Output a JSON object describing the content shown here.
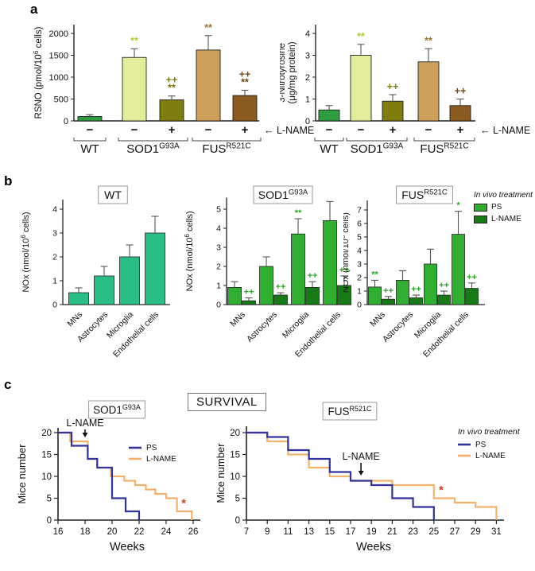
{
  "panels": {
    "a": {
      "letter": "a"
    },
    "b": {
      "letter": "b",
      "legend": {
        "title": "In vivo treatment",
        "items": [
          {
            "label": "PS",
            "color": "#2fae2f"
          },
          {
            "label": "L-NAME",
            "color": "#177a17"
          }
        ]
      }
    },
    "c": {
      "letter": "c",
      "survival_title": "SURVIVAL"
    }
  },
  "chart_data": [
    {
      "id": "rsno",
      "panel": "a",
      "type": "bar",
      "ylabel_lines": [
        {
          "pre": "RSNO (pmol/10",
          "sup": "6",
          "post": " cells)"
        }
      ],
      "ylim": [
        0,
        2200
      ],
      "yticks": [
        0,
        500,
        1000,
        1500,
        2000
      ],
      "treatment_label": "← L-NAME",
      "bars": [
        {
          "group": "WT",
          "treatment": "−",
          "value": 100,
          "err": 40,
          "color": "#2f9e41",
          "sig": [],
          "sig_color": "#2f9e41"
        },
        {
          "group": "SOD1 G93A",
          "treatment": "−",
          "value": 1450,
          "err": 200,
          "color": "#e3ee9a",
          "sig": [
            "**"
          ],
          "sig_color": "#b7c832"
        },
        {
          "group": "SOD1 G93A",
          "treatment": "+",
          "value": 480,
          "err": 90,
          "color": "#7f7d0e",
          "sig": [
            "++",
            "**"
          ],
          "sig_color": "#7f7d0e"
        },
        {
          "group": "FUS R521C",
          "treatment": "−",
          "value": 1620,
          "err": 330,
          "color": "#cd9f58",
          "sig": [
            "**"
          ],
          "sig_color": "#97742f"
        },
        {
          "group": "FUS R521C",
          "treatment": "+",
          "value": 580,
          "err": 120,
          "color": "#8a5a20",
          "sig": [
            "++",
            "**"
          ],
          "sig_color": "#6e4a16"
        }
      ],
      "groups": [
        {
          "base": "WT",
          "sup": "",
          "first": 0,
          "last": 0
        },
        {
          "base": "SOD1",
          "sup": "G93A",
          "first": 1,
          "last": 2
        },
        {
          "base": "FUS",
          "sup": "R521C",
          "first": 3,
          "last": 4
        }
      ]
    },
    {
      "id": "nitro",
      "panel": "a",
      "type": "bar",
      "ylabel_lines": [
        {
          "pre": "3-Nitrotyrosine"
        },
        {
          "pre": "(μg/mg protein)"
        }
      ],
      "ylim": [
        0,
        4.4
      ],
      "yticks": [
        0,
        1,
        2,
        3,
        4
      ],
      "treatment_label": "← L-NAME",
      "bars": [
        {
          "group": "WT",
          "treatment": "−",
          "value": 0.5,
          "err": 0.2,
          "color": "#2f9e41",
          "sig": [],
          "sig_color": "#2f9e41"
        },
        {
          "group": "SOD1 G93A",
          "treatment": "−",
          "value": 3.0,
          "err": 0.5,
          "color": "#e3ee9a",
          "sig": [
            "**"
          ],
          "sig_color": "#b7c832"
        },
        {
          "group": "SOD1 G93A",
          "treatment": "+",
          "value": 0.9,
          "err": 0.3,
          "color": "#7f7d0e",
          "sig": [
            "++"
          ],
          "sig_color": "#7f7d0e"
        },
        {
          "group": "FUS R521C",
          "treatment": "−",
          "value": 2.7,
          "err": 0.6,
          "color": "#cd9f58",
          "sig": [
            "**"
          ],
          "sig_color": "#97742f"
        },
        {
          "group": "FUS R521C",
          "treatment": "+",
          "value": 0.7,
          "err": 0.3,
          "color": "#8a5a20",
          "sig": [
            "++"
          ],
          "sig_color": "#6e4a16"
        }
      ],
      "groups": [
        {
          "base": "WT",
          "sup": "",
          "first": 0,
          "last": 0
        },
        {
          "base": "SOD1",
          "sup": "G93A",
          "first": 1,
          "last": 2
        },
        {
          "base": "FUS",
          "sup": "R521C",
          "first": 3,
          "last": 4
        }
      ]
    },
    {
      "id": "noxwt",
      "panel": "b",
      "type": "series-bar",
      "title": {
        "base": "WT",
        "sup": ""
      },
      "ylabel_lines": [
        {
          "pre": "NOx (nmol/10",
          "sup": "6",
          "post": " cells)"
        }
      ],
      "ylim": [
        0,
        4.4
      ],
      "yticks": [
        0,
        1,
        2,
        3,
        4
      ],
      "categories": [
        "MNs",
        "Astrocytes",
        "Microglia",
        "Endothelial cells"
      ],
      "series": [
        {
          "name": "WT",
          "color": "#2abd85",
          "sig_color": "#26a526",
          "values": [
            0.5,
            1.2,
            2.0,
            3.0
          ],
          "errors": [
            0.2,
            0.4,
            0.5,
            0.7
          ],
          "sig": [
            "",
            "",
            "",
            ""
          ]
        }
      ]
    },
    {
      "id": "noxsod1",
      "panel": "b",
      "type": "series-bar",
      "title": {
        "base": "SOD1",
        "sup": "G93A"
      },
      "ylabel_lines": [
        {
          "pre": "NOx (nmol/10",
          "sup": "6",
          "post": " cells)"
        }
      ],
      "ylim": [
        0,
        5.6
      ],
      "yticks": [
        0,
        1,
        2,
        3,
        4,
        5
      ],
      "categories": [
        "MNs",
        "Astrocytes",
        "Microglia",
        "Endothelial cells"
      ],
      "series": [
        {
          "name": "PS",
          "color": "#2fae2f",
          "sig_color": "#26a526",
          "values": [
            0.9,
            2.0,
            3.7,
            4.4
          ],
          "errors": [
            0.3,
            0.5,
            0.8,
            1.0
          ],
          "sig": [
            "",
            "",
            "**",
            ""
          ]
        },
        {
          "name": "L-NAME",
          "color": "#177a17",
          "sig_color": "#26a526",
          "values": [
            0.2,
            0.5,
            0.9,
            1.0
          ],
          "errors": [
            0.15,
            0.12,
            0.3,
            0.5
          ],
          "sig": [
            "++",
            "++",
            "++",
            "++"
          ]
        }
      ]
    },
    {
      "id": "noxfus",
      "panel": "b",
      "type": "series-bar",
      "title": {
        "base": "FUS",
        "sup": "R521C"
      },
      "ylabel_lines": [
        {
          "pre": "NOx (nmol/10",
          "sup": "6",
          "post": " cells)"
        }
      ],
      "ylim": [
        0,
        7.7
      ],
      "yticks": [
        0,
        1,
        2,
        3,
        4,
        5,
        6,
        7
      ],
      "categories": [
        "MNs",
        "Astrocytes",
        "Microglia",
        "Endothelial cells"
      ],
      "series": [
        {
          "name": "PS",
          "color": "#2fae2f",
          "sig_color": "#26a526",
          "values": [
            1.3,
            1.8,
            3.0,
            5.2
          ],
          "errors": [
            0.5,
            0.7,
            1.1,
            1.7
          ],
          "sig": [
            "**",
            "",
            "",
            "*"
          ]
        },
        {
          "name": "L-NAME",
          "color": "#177a17",
          "sig_color": "#26a526",
          "values": [
            0.4,
            0.5,
            0.7,
            1.2
          ],
          "errors": [
            0.2,
            0.2,
            0.3,
            0.4
          ],
          "sig": [
            "++",
            "++",
            "++",
            "++"
          ]
        }
      ]
    },
    {
      "id": "ssod1",
      "panel": "c",
      "type": "step",
      "title": {
        "base": "SOD1",
        "sup": "G93A"
      },
      "ylabel": "Mice number",
      "xlabel": "Weeks",
      "ylim": [
        0,
        22
      ],
      "yticks": [
        0,
        5,
        10,
        15,
        20
      ],
      "xlim": [
        16,
        27
      ],
      "xticks": [
        16,
        18,
        20,
        22,
        24,
        26
      ],
      "annotation": {
        "label": "L-NAME",
        "week": 18
      },
      "star": {
        "x": 25.3,
        "y": 3,
        "label": "*",
        "color": "#c2451f"
      },
      "legend": {
        "title": "",
        "items": [
          {
            "label": "PS",
            "color": "#32329b"
          },
          {
            "label": "L-NAME",
            "color": "#f2b269"
          }
        ]
      },
      "series": [
        {
          "name": "PS",
          "color": "#32329b",
          "points": [
            [
              16,
              20
            ],
            [
              17,
              20
            ],
            [
              17,
              17
            ],
            [
              18.2,
              17
            ],
            [
              18.2,
              14
            ],
            [
              18.9,
              14
            ],
            [
              18.9,
              12
            ],
            [
              20,
              12
            ],
            [
              20,
              5
            ],
            [
              21,
              5
            ],
            [
              21,
              2
            ],
            [
              22,
              2
            ],
            [
              22,
              0
            ]
          ]
        },
        {
          "name": "L-NAME",
          "color": "#f2b269",
          "points": [
            [
              16,
              20
            ],
            [
              16.9,
              20
            ],
            [
              16.9,
              18
            ],
            [
              18.2,
              18
            ],
            [
              18.2,
              14
            ],
            [
              18.9,
              14
            ],
            [
              18.9,
              12
            ],
            [
              19.9,
              12
            ],
            [
              19.9,
              10
            ],
            [
              20.9,
              10
            ],
            [
              20.9,
              9
            ],
            [
              21.7,
              9
            ],
            [
              21.7,
              8
            ],
            [
              22.5,
              8
            ],
            [
              22.5,
              7
            ],
            [
              23.2,
              7
            ],
            [
              23.2,
              6
            ],
            [
              24,
              6
            ],
            [
              24,
              5
            ],
            [
              24.8,
              5
            ],
            [
              24.8,
              2
            ],
            [
              25.9,
              2
            ],
            [
              25.9,
              0
            ]
          ]
        }
      ]
    },
    {
      "id": "sfus",
      "panel": "c",
      "type": "step",
      "title": {
        "base": "FUS",
        "sup": "R521C"
      },
      "ylabel": "Mice number",
      "xlabel": "Weeks",
      "ylim": [
        0,
        22
      ],
      "yticks": [
        0,
        5,
        10,
        15,
        20
      ],
      "xlim": [
        7,
        33
      ],
      "xticks": [
        7,
        9,
        11,
        13,
        15,
        17,
        19,
        21,
        23,
        25,
        27,
        29,
        31
      ],
      "annotation": {
        "label": "L-NAME",
        "week": 18
      },
      "star": {
        "x": 25.7,
        "y": 6,
        "label": "*",
        "color": "#c2451f"
      },
      "legend": {
        "title": "In vivo treatment",
        "items": [
          {
            "label": "PS",
            "color": "#32329b"
          },
          {
            "label": "L-NAME",
            "color": "#f2b269"
          }
        ]
      },
      "series": [
        {
          "name": "PS",
          "color": "#32329b",
          "points": [
            [
              7,
              20
            ],
            [
              9,
              20
            ],
            [
              9,
              19
            ],
            [
              11,
              19
            ],
            [
              11,
              16
            ],
            [
              13,
              16
            ],
            [
              13,
              14
            ],
            [
              15,
              14
            ],
            [
              15,
              11
            ],
            [
              17,
              11
            ],
            [
              17,
              9
            ],
            [
              19,
              9
            ],
            [
              19,
              8
            ],
            [
              21,
              8
            ],
            [
              21,
              5
            ],
            [
              23,
              5
            ],
            [
              23,
              3
            ],
            [
              25,
              3
            ],
            [
              25,
              0
            ]
          ]
        },
        {
          "name": "L-NAME",
          "color": "#f2b269",
          "points": [
            [
              7,
              20
            ],
            [
              9,
              20
            ],
            [
              9,
              18
            ],
            [
              11,
              18
            ],
            [
              11,
              15
            ],
            [
              13,
              15
            ],
            [
              13,
              12
            ],
            [
              15,
              12
            ],
            [
              15,
              10
            ],
            [
              17,
              10
            ],
            [
              17,
              9
            ],
            [
              21,
              9
            ],
            [
              21,
              8
            ],
            [
              25,
              8
            ],
            [
              25,
              5
            ],
            [
              27,
              5
            ],
            [
              27,
              4
            ],
            [
              29,
              4
            ],
            [
              29,
              3
            ],
            [
              31,
              3
            ],
            [
              31,
              0
            ]
          ]
        }
      ]
    }
  ]
}
